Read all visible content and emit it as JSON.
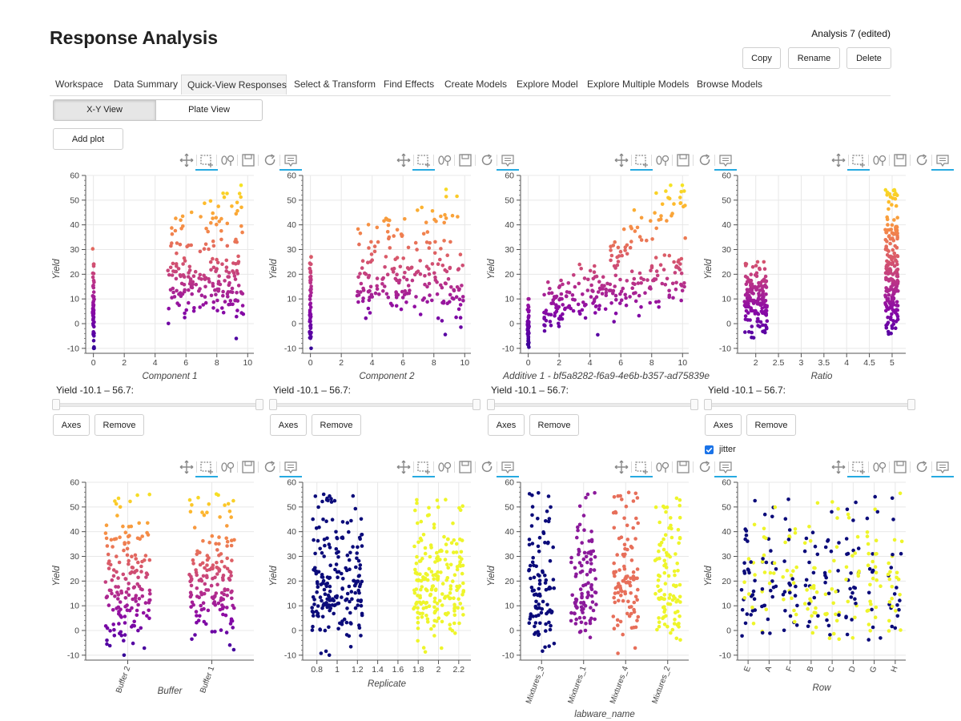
{
  "header": {
    "title": "Response Analysis",
    "analysis_name": "Analysis 7 (edited)",
    "buttons": {
      "copy": "Copy",
      "rename": "Rename",
      "delete": "Delete"
    }
  },
  "tabs": [
    {
      "label": "Workspace",
      "active": false
    },
    {
      "label": "Data Summary",
      "active": false
    },
    {
      "label": "Quick-View Responses",
      "active": true
    },
    {
      "label": "Select & Transform",
      "active": false
    },
    {
      "label": "Find Effects",
      "active": false
    },
    {
      "label": "Create Models",
      "active": false
    },
    {
      "label": "Explore Model",
      "active": false
    },
    {
      "label": "Explore Multiple Models",
      "active": false
    },
    {
      "label": "Browse Models",
      "active": false
    }
  ],
  "view_toggle": {
    "xy": "X-Y View",
    "plate": "Plate View",
    "selected": "X-Y View"
  },
  "add_plot_label": "Add plot",
  "panel_controls": {
    "slider_label": "Yield -10.1 – 56.7:",
    "slider_range": [
      -10.1,
      56.7
    ],
    "axes_label": "Axes",
    "remove_label": "Remove"
  },
  "jitter": {
    "label": "jitter",
    "checked": true
  },
  "toolbar_icons": [
    "pan-icon",
    "box-zoom-icon",
    "wheel-zoom-icon",
    "save-icon",
    "reset-icon",
    "hover-icon"
  ],
  "colors": {
    "accent": "#26aae1",
    "checkbox": "#1a73e8",
    "plasma_low": "#4c02a1",
    "plasma_mid": "#cc4778",
    "plasma_high": "#fcce25",
    "navy": "#0b0b7a",
    "yellow": "#eef52a"
  },
  "chart_data": [
    {
      "type": "scatter",
      "xlabel": "Component 1",
      "ylabel": "Yield",
      "x_ticks": [
        "0",
        "2",
        "4",
        "6",
        "8",
        "10"
      ],
      "xlim": [
        -0.5,
        10.4
      ],
      "ylim": [
        -12,
        60
      ],
      "y_ticks": [
        -10,
        0,
        10,
        20,
        30,
        40,
        50,
        60
      ],
      "colormap": "plasma"
    },
    {
      "type": "scatter",
      "xlabel": "Component 2",
      "ylabel": "Yield",
      "x_ticks": [
        "0",
        "2",
        "4",
        "6",
        "8",
        "10"
      ],
      "xlim": [
        -0.5,
        10.4
      ],
      "ylim": [
        -12,
        60
      ],
      "y_ticks": [
        -10,
        0,
        10,
        20,
        30,
        40,
        50,
        60
      ],
      "colormap": "plasma"
    },
    {
      "type": "scatter",
      "xlabel": "Additive 1 - bf5a8282-f6a9-4e6b-b357-ad75839e",
      "ylabel": "Yield",
      "x_ticks": [
        "0",
        "2",
        "4",
        "6",
        "8",
        "10"
      ],
      "xlim": [
        -0.5,
        10.4
      ],
      "ylim": [
        -12,
        60
      ],
      "y_ticks": [
        -10,
        0,
        10,
        20,
        30,
        40,
        50,
        60
      ],
      "colormap": "plasma"
    },
    {
      "type": "scatter",
      "xlabel": "Ratio",
      "ylabel": "Yield",
      "x_ticks": [
        "2",
        "2.5",
        "3",
        "3.5",
        "4",
        "4.5",
        "5"
      ],
      "xlim": [
        1.6,
        5.3
      ],
      "ylim": [
        -12,
        60
      ],
      "y_ticks": [
        -10,
        0,
        10,
        20,
        30,
        40,
        50,
        60
      ],
      "colormap": "plasma"
    },
    {
      "type": "scatter",
      "xlabel": "Buffer",
      "ylabel": "Yield",
      "categories": [
        "Buffer 2",
        "Buffer 1"
      ],
      "ylim": [
        -12,
        60
      ],
      "y_ticks": [
        -10,
        0,
        10,
        20,
        30,
        40,
        50,
        60
      ],
      "colormap": "plasma"
    },
    {
      "type": "scatter",
      "xlabel": "Replicate",
      "ylabel": "Yield",
      "x_ticks": [
        "0.8",
        "1",
        "1.2",
        "1.4",
        "1.6",
        "1.8",
        "2",
        "2.2"
      ],
      "xlim": [
        0.66,
        2.32
      ],
      "ylim": [
        -12,
        60
      ],
      "y_ticks": [
        -10,
        0,
        10,
        20,
        30,
        40,
        50,
        60
      ],
      "series_colors": [
        "#0b0b7a",
        "#eef52a"
      ]
    },
    {
      "type": "scatter",
      "xlabel": "labware_name",
      "ylabel": "Yield",
      "categories": [
        "Mixtures_3",
        "Mixtures_1",
        "Mixtures_4",
        "Mixtures_2"
      ],
      "ylim": [
        -12,
        60
      ],
      "y_ticks": [
        -10,
        0,
        10,
        20,
        30,
        40,
        50,
        60
      ],
      "series_colors": [
        "#0b0b7a",
        "#8b1a9b",
        "#e76f5a",
        "#eef52a"
      ]
    },
    {
      "type": "scatter",
      "xlabel": "Row",
      "ylabel": "Yield",
      "categories": [
        "E",
        "A",
        "F",
        "B",
        "C",
        "D",
        "G",
        "H"
      ],
      "ylim": [
        -12,
        60
      ],
      "y_ticks": [
        -10,
        0,
        10,
        20,
        30,
        40,
        50,
        60
      ],
      "series_colors": [
        "#0b0b7a",
        "#eef52a"
      ]
    }
  ]
}
